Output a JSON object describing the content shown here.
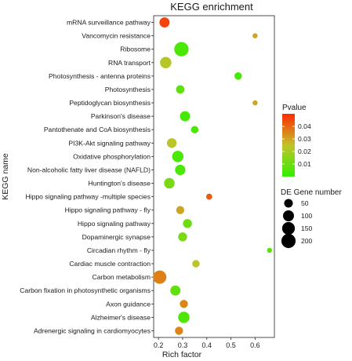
{
  "chart_data": {
    "type": "scatter",
    "title": "KEGG enrichment",
    "xlabel": "Rich factor",
    "ylabel": "KEGG name",
    "xlim": [
      0.18,
      0.68
    ],
    "x_ticks": [
      0.2,
      0.3,
      0.4,
      0.5,
      0.6
    ],
    "x_tick_labels": [
      "0.2",
      "0.3",
      "0.4",
      "0.5",
      "0.6"
    ],
    "categories": [
      "mRNA surveillance pathway",
      "Vancomycin resistance",
      "Ribosome",
      "RNA transport",
      "Photosynthesis - antenna proteins",
      "Photosynthesis",
      "Peptidoglycan biosynthesis",
      "Parkinson's disease",
      "Pantothenate and CoA biosynthesis",
      "PI3K-Akt signaling pathway",
      "Oxidative phosphorylation",
      "Non-alcoholic fatty liver disease (NAFLD)",
      "Huntington's disease",
      "Hippo signaling pathway -multiple species",
      "Hippo signaling pathway - fly",
      "Hippo signaling pathway",
      "Dopaminergic synapse",
      "Circadian rhythm - fly",
      "Cardiac muscle contraction",
      "Carbon metabolism",
      "Carbon fixation in photosynthetic organisms",
      "Axon guidance",
      "Alzheimer's disease",
      "Adrenergic signaling in cardiomyocytes"
    ],
    "points": [
      {
        "category": "mRNA surveillance pathway",
        "rich_factor": 0.225,
        "pvalue": 0.046,
        "gene_number": 80
      },
      {
        "category": "Vancomycin resistance",
        "rich_factor": 0.6,
        "pvalue": 0.03,
        "gene_number": 6
      },
      {
        "category": "Ribosome",
        "rich_factor": 0.295,
        "pvalue": 0.004,
        "gene_number": 205
      },
      {
        "category": "RNA transport",
        "rich_factor": 0.23,
        "pvalue": 0.023,
        "gene_number": 110
      },
      {
        "category": "Photosynthesis - antenna proteins",
        "rich_factor": 0.53,
        "pvalue": 0.003,
        "gene_number": 30
      },
      {
        "category": "Photosynthesis",
        "rich_factor": 0.29,
        "pvalue": 0.007,
        "gene_number": 45
      },
      {
        "category": "Peptidoglycan biosynthesis",
        "rich_factor": 0.6,
        "pvalue": 0.03,
        "gene_number": 6
      },
      {
        "category": "Parkinson's disease",
        "rich_factor": 0.31,
        "pvalue": 0.003,
        "gene_number": 80
      },
      {
        "category": "Pantothenate and CoA biosynthesis",
        "rich_factor": 0.35,
        "pvalue": 0.004,
        "gene_number": 30
      },
      {
        "category": "PI3K-Akt signaling pathway",
        "rich_factor": 0.255,
        "pvalue": 0.024,
        "gene_number": 70
      },
      {
        "category": "Oxidative phosphorylation",
        "rich_factor": 0.28,
        "pvalue": 0.004,
        "gene_number": 110
      },
      {
        "category": "Non-alcoholic fatty liver disease (NAFLD)",
        "rich_factor": 0.29,
        "pvalue": 0.004,
        "gene_number": 85
      },
      {
        "category": "Huntington's disease",
        "rich_factor": 0.245,
        "pvalue": 0.012,
        "gene_number": 90
      },
      {
        "category": "Hippo signaling pathway -multiple species",
        "rich_factor": 0.41,
        "pvalue": 0.042,
        "gene_number": 14
      },
      {
        "category": "Hippo signaling pathway - fly",
        "rich_factor": 0.29,
        "pvalue": 0.03,
        "gene_number": 40
      },
      {
        "category": "Hippo signaling pathway",
        "rich_factor": 0.32,
        "pvalue": 0.01,
        "gene_number": 55
      },
      {
        "category": "Dopaminergic synapse",
        "rich_factor": 0.3,
        "pvalue": 0.012,
        "gene_number": 55
      },
      {
        "category": "Circadian rhythm - fly",
        "rich_factor": 0.66,
        "pvalue": 0.006,
        "gene_number": 6
      },
      {
        "category": "Cardiac muscle contraction",
        "rich_factor": 0.355,
        "pvalue": 0.024,
        "gene_number": 30
      },
      {
        "category": "Carbon metabolism",
        "rich_factor": 0.205,
        "pvalue": 0.036,
        "gene_number": 170
      },
      {
        "category": "Carbon fixation in photosynthetic organisms",
        "rich_factor": 0.27,
        "pvalue": 0.008,
        "gene_number": 80
      },
      {
        "category": "Axon guidance",
        "rich_factor": 0.305,
        "pvalue": 0.035,
        "gene_number": 40
      },
      {
        "category": "Alzheimer's disease",
        "rich_factor": 0.305,
        "pvalue": 0.005,
        "gene_number": 110
      },
      {
        "category": "Adrenergic signaling in cardiomyocytes",
        "rich_factor": 0.285,
        "pvalue": 0.035,
        "gene_number": 40
      }
    ],
    "color_legend": {
      "title": "Pvalue",
      "min": 0.0,
      "max": 0.05,
      "ticks": [
        0.01,
        0.02,
        0.03,
        0.04
      ],
      "tick_labels": [
        "0.01",
        "0.02",
        "0.03",
        "0.04"
      ],
      "low_color": "#33ee00",
      "mid_color": "#c2c32a",
      "high_color": "#ff2a00"
    },
    "size_legend": {
      "title": "DE Gene number",
      "values": [
        50,
        100,
        150,
        200
      ],
      "labels": [
        "50",
        "100",
        "150",
        "200"
      ]
    },
    "grid": false
  }
}
